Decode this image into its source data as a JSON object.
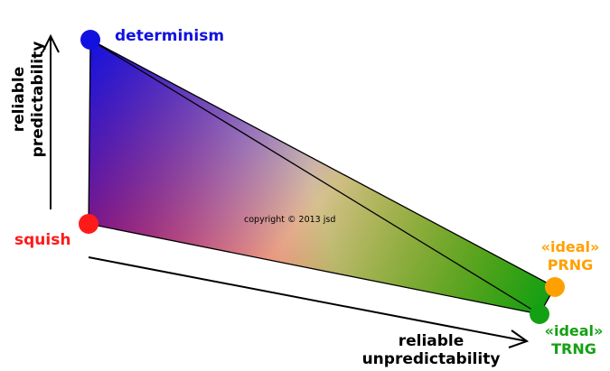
{
  "vertices": {
    "determinism": {
      "label": "determinism",
      "color": "#1212e0"
    },
    "squish": {
      "label": "squish",
      "color": "#ff1a1a"
    },
    "prng": {
      "label_line1": "«ideal»",
      "label_line2": "PRNG",
      "color": "#ffa000"
    },
    "trng": {
      "label_line1": "«ideal»",
      "label_line2": "TRNG",
      "color": "#14a014"
    }
  },
  "axes": {
    "vertical": {
      "line1": "reliable",
      "line2": "predictability"
    },
    "horizontal": {
      "line1": "reliable",
      "line2": "unpredictability"
    }
  },
  "copyright": "copyright © 2013 jsd"
}
